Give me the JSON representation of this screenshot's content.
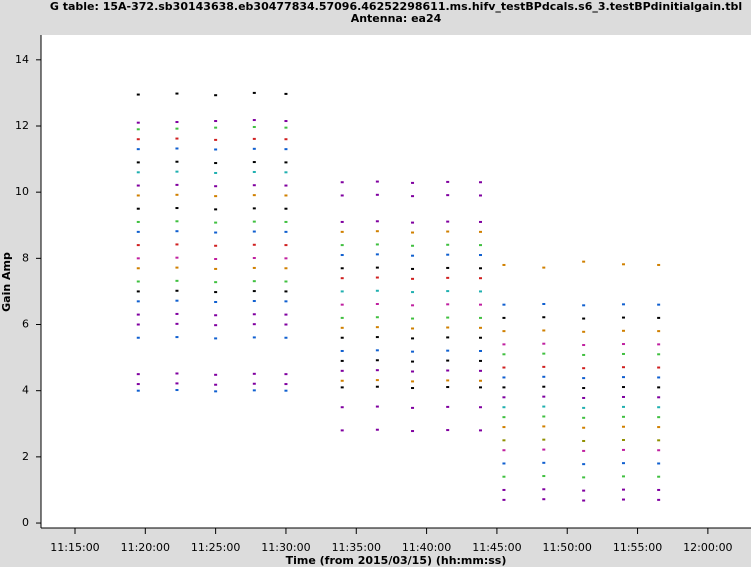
{
  "chart_data": {
    "type": "scatter",
    "title": "G table: 15A-372.sb30143638.eb30477834.57096.46252298611.ms.hifv_testBPdcals.s6_3.testBPdinitialgain.tbl",
    "subtitle": "Antenna: ea24",
    "x_label": "Time (from 2015/03/15) (hh:mm:ss)",
    "y_label": "Gain Amp",
    "xlim": [
      "11:12:35",
      "12:03:04"
    ],
    "xticks": [
      "11:15:00",
      "11:20:00",
      "11:25:00",
      "11:30:00",
      "11:35:00",
      "11:40:00",
      "11:45:00",
      "11:50:00",
      "11:55:00",
      "12:00:00"
    ],
    "ylim": [
      -0.15,
      14.75
    ],
    "yticks": [
      0,
      2,
      4,
      6,
      8,
      10,
      12,
      14
    ],
    "series": [
      {
        "color": "#000000",
        "x": [
          "11:19:30",
          "11:22:15",
          "11:25:00",
          "11:27:45",
          "11:30:00"
        ],
        "values": [
          12.95,
          12.98,
          12.93,
          13.0,
          12.97
        ]
      },
      {
        "color": "#8000a0",
        "x": [
          "11:19:30",
          "11:22:15",
          "11:25:00",
          "11:27:45",
          "11:30:00"
        ],
        "values": [
          12.1,
          12.12,
          12.15,
          12.18,
          12.15
        ]
      },
      {
        "color": "#40c040",
        "x": [
          "11:19:30",
          "11:22:15",
          "11:25:00",
          "11:27:45",
          "11:30:00"
        ],
        "values": [
          11.9,
          11.92,
          11.95,
          11.97,
          11.95
        ]
      },
      {
        "color": "#d02020",
        "x": [
          "11:19:30",
          "11:22:15",
          "11:25:00",
          "11:27:45",
          "11:30:00"
        ],
        "values": [
          11.6,
          11.62,
          11.58,
          11.61,
          11.6
        ]
      },
      {
        "color": "#1060d0",
        "x": [
          "11:19:30",
          "11:22:15",
          "11:25:00",
          "11:27:45",
          "11:30:00"
        ],
        "values": [
          11.3,
          11.32,
          11.29,
          11.31,
          11.3
        ]
      },
      {
        "color": "#000000",
        "x": [
          "11:19:30",
          "11:22:15",
          "11:25:00",
          "11:27:45",
          "11:30:00"
        ],
        "values": [
          10.9,
          10.92,
          10.88,
          10.91,
          10.9
        ]
      },
      {
        "color": "#20b0b0",
        "x": [
          "11:19:30",
          "11:22:15",
          "11:25:00",
          "11:27:45",
          "11:30:00"
        ],
        "values": [
          10.6,
          10.62,
          10.58,
          10.61,
          10.6
        ]
      },
      {
        "color": "#8000a0",
        "x": [
          "11:19:30",
          "11:22:15",
          "11:25:00",
          "11:27:45",
          "11:30:00"
        ],
        "values": [
          10.2,
          10.22,
          10.18,
          10.21,
          10.2
        ]
      },
      {
        "color": "#d08000",
        "x": [
          "11:19:30",
          "11:22:15",
          "11:25:00",
          "11:27:45",
          "11:30:00"
        ],
        "values": [
          9.9,
          9.92,
          9.88,
          9.91,
          9.9
        ]
      },
      {
        "color": "#000000",
        "x": [
          "11:19:30",
          "11:22:15",
          "11:25:00",
          "11:27:45",
          "11:30:00"
        ],
        "values": [
          9.5,
          9.52,
          9.48,
          9.51,
          9.5
        ]
      },
      {
        "color": "#40c040",
        "x": [
          "11:19:30",
          "11:22:15",
          "11:25:00",
          "11:27:45",
          "11:30:00"
        ],
        "values": [
          9.1,
          9.12,
          9.08,
          9.11,
          9.1
        ]
      },
      {
        "color": "#1060d0",
        "x": [
          "11:19:30",
          "11:22:15",
          "11:25:00",
          "11:27:45",
          "11:30:00"
        ],
        "values": [
          8.8,
          8.82,
          8.78,
          8.81,
          8.8
        ]
      },
      {
        "color": "#d02020",
        "x": [
          "11:19:30",
          "11:22:15",
          "11:25:00",
          "11:27:45",
          "11:30:00"
        ],
        "values": [
          8.4,
          8.42,
          8.38,
          8.41,
          8.4
        ]
      },
      {
        "color": "#c020a0",
        "x": [
          "11:19:30",
          "11:22:15",
          "11:25:00",
          "11:27:45",
          "11:30:00"
        ],
        "values": [
          8.0,
          8.02,
          7.98,
          8.01,
          8.0
        ]
      },
      {
        "color": "#d08000",
        "x": [
          "11:19:30",
          "11:22:15",
          "11:25:00",
          "11:27:45",
          "11:30:00"
        ],
        "values": [
          7.7,
          7.72,
          7.68,
          7.71,
          7.7
        ]
      },
      {
        "color": "#40c040",
        "x": [
          "11:19:30",
          "11:22:15",
          "11:25:00",
          "11:27:45",
          "11:30:00"
        ],
        "values": [
          7.3,
          7.32,
          7.28,
          7.31,
          7.3
        ]
      },
      {
        "color": "#000000",
        "x": [
          "11:19:30",
          "11:22:15",
          "11:25:00",
          "11:27:45",
          "11:30:00"
        ],
        "values": [
          7.0,
          7.02,
          6.98,
          7.01,
          7.0
        ]
      },
      {
        "color": "#1060d0",
        "x": [
          "11:19:30",
          "11:22:15",
          "11:25:00",
          "11:27:45",
          "11:30:00"
        ],
        "values": [
          6.7,
          6.72,
          6.68,
          6.71,
          6.7
        ]
      },
      {
        "color": "#8000a0",
        "x": [
          "11:19:30",
          "11:22:15",
          "11:25:00",
          "11:27:45",
          "11:30:00"
        ],
        "values": [
          6.3,
          6.32,
          6.28,
          6.31,
          6.3
        ]
      },
      {
        "color": "#8000a0",
        "x": [
          "11:19:30",
          "11:22:15",
          "11:25:00",
          "11:27:45",
          "11:30:00"
        ],
        "values": [
          6.0,
          6.02,
          5.98,
          6.01,
          6.0
        ]
      },
      {
        "color": "#1060d0",
        "x": [
          "11:19:30",
          "11:22:15",
          "11:25:00",
          "11:27:45",
          "11:30:00"
        ],
        "values": [
          5.6,
          5.62,
          5.58,
          5.61,
          5.6
        ]
      },
      {
        "color": "#8000a0",
        "x": [
          "11:19:30",
          "11:22:15",
          "11:25:00",
          "11:27:45",
          "11:30:00"
        ],
        "values": [
          4.5,
          4.52,
          4.48,
          4.51,
          4.5
        ]
      },
      {
        "color": "#8000a0",
        "x": [
          "11:19:30",
          "11:22:15",
          "11:25:00",
          "11:27:45",
          "11:30:00"
        ],
        "values": [
          4.2,
          4.22,
          4.18,
          4.21,
          4.2
        ]
      },
      {
        "color": "#1060d0",
        "x": [
          "11:19:30",
          "11:22:15",
          "11:25:00",
          "11:27:45",
          "11:30:00"
        ],
        "values": [
          4.0,
          4.02,
          3.98,
          4.01,
          4.0
        ]
      },
      {
        "color": "#8000a0",
        "x": [
          "11:34:00",
          "11:36:30",
          "11:39:00",
          "11:41:30",
          "11:43:50"
        ],
        "values": [
          10.3,
          10.32,
          10.28,
          10.31,
          10.3
        ]
      },
      {
        "color": "#8000a0",
        "x": [
          "11:34:00",
          "11:36:30",
          "11:39:00",
          "11:41:30",
          "11:43:50"
        ],
        "values": [
          9.9,
          9.92,
          9.88,
          9.91,
          9.9
        ]
      },
      {
        "color": "#8000a0",
        "x": [
          "11:34:00",
          "11:36:30",
          "11:39:00",
          "11:41:30",
          "11:43:50"
        ],
        "values": [
          9.1,
          9.12,
          9.08,
          9.11,
          9.1
        ]
      },
      {
        "color": "#d08000",
        "x": [
          "11:34:00",
          "11:36:30",
          "11:39:00",
          "11:41:30",
          "11:43:50"
        ],
        "values": [
          8.8,
          8.82,
          8.78,
          8.81,
          8.8
        ]
      },
      {
        "color": "#40c040",
        "x": [
          "11:34:00",
          "11:36:30",
          "11:39:00",
          "11:41:30",
          "11:43:50"
        ],
        "values": [
          8.4,
          8.42,
          8.38,
          8.41,
          8.4
        ]
      },
      {
        "color": "#1060d0",
        "x": [
          "11:34:00",
          "11:36:30",
          "11:39:00",
          "11:41:30",
          "11:43:50"
        ],
        "values": [
          8.1,
          8.12,
          8.08,
          8.11,
          8.1
        ]
      },
      {
        "color": "#000000",
        "x": [
          "11:34:00",
          "11:36:30",
          "11:39:00",
          "11:41:30",
          "11:43:50"
        ],
        "values": [
          7.7,
          7.72,
          7.68,
          7.71,
          7.7
        ]
      },
      {
        "color": "#d02020",
        "x": [
          "11:34:00",
          "11:36:30",
          "11:39:00",
          "11:41:30",
          "11:43:50"
        ],
        "values": [
          7.4,
          7.42,
          7.38,
          7.41,
          7.4
        ]
      },
      {
        "color": "#20b0b0",
        "x": [
          "11:34:00",
          "11:36:30",
          "11:39:00",
          "11:41:30",
          "11:43:50"
        ],
        "values": [
          7.0,
          7.02,
          6.98,
          7.01,
          7.0
        ]
      },
      {
        "color": "#c020a0",
        "x": [
          "11:34:00",
          "11:36:30",
          "11:39:00",
          "11:41:30",
          "11:43:50"
        ],
        "values": [
          6.6,
          6.62,
          6.58,
          6.61,
          6.6
        ]
      },
      {
        "color": "#40c040",
        "x": [
          "11:34:00",
          "11:36:30",
          "11:39:00",
          "11:41:30",
          "11:43:50"
        ],
        "values": [
          6.2,
          6.22,
          6.18,
          6.21,
          6.2
        ]
      },
      {
        "color": "#d08000",
        "x": [
          "11:34:00",
          "11:36:30",
          "11:39:00",
          "11:41:30",
          "11:43:50"
        ],
        "values": [
          5.9,
          5.92,
          5.88,
          5.91,
          5.9
        ]
      },
      {
        "color": "#000000",
        "x": [
          "11:34:00",
          "11:36:30",
          "11:39:00",
          "11:41:30",
          "11:43:50"
        ],
        "values": [
          5.6,
          5.62,
          5.58,
          5.61,
          5.6
        ]
      },
      {
        "color": "#1060d0",
        "x": [
          "11:34:00",
          "11:36:30",
          "11:39:00",
          "11:41:30",
          "11:43:50"
        ],
        "values": [
          5.2,
          5.22,
          5.18,
          5.21,
          5.2
        ]
      },
      {
        "color": "#000000",
        "x": [
          "11:34:00",
          "11:36:30",
          "11:39:00",
          "11:41:30",
          "11:43:50"
        ],
        "values": [
          4.9,
          4.92,
          4.88,
          4.91,
          4.9
        ]
      },
      {
        "color": "#8000a0",
        "x": [
          "11:34:00",
          "11:36:30",
          "11:39:00",
          "11:41:30",
          "11:43:50"
        ],
        "values": [
          4.6,
          4.62,
          4.58,
          4.61,
          4.6
        ]
      },
      {
        "color": "#d08000",
        "x": [
          "11:34:00",
          "11:36:30",
          "11:39:00",
          "11:41:30",
          "11:43:50"
        ],
        "values": [
          4.3,
          4.32,
          4.28,
          4.31,
          4.3
        ]
      },
      {
        "color": "#000000",
        "x": [
          "11:34:00",
          "11:36:30",
          "11:39:00",
          "11:41:30",
          "11:43:50"
        ],
        "values": [
          4.1,
          4.12,
          4.08,
          4.11,
          4.1
        ]
      },
      {
        "color": "#8000a0",
        "x": [
          "11:34:00",
          "11:36:30",
          "11:39:00",
          "11:41:30",
          "11:43:50"
        ],
        "values": [
          3.5,
          3.52,
          3.48,
          3.51,
          3.5
        ]
      },
      {
        "color": "#8000a0",
        "x": [
          "11:34:00",
          "11:36:30",
          "11:39:00",
          "11:41:30",
          "11:43:50"
        ],
        "values": [
          2.8,
          2.82,
          2.78,
          2.81,
          2.8
        ]
      },
      {
        "color": "#d08000",
        "x": [
          "11:45:30",
          "11:48:20",
          "11:51:10",
          "11:54:00",
          "11:56:30"
        ],
        "values": [
          7.8,
          7.72,
          7.9,
          7.82,
          7.8
        ]
      },
      {
        "color": "#1060d0",
        "x": [
          "11:45:30",
          "11:48:20",
          "11:51:10",
          "11:54:00",
          "11:56:30"
        ],
        "values": [
          6.6,
          6.62,
          6.58,
          6.61,
          6.6
        ]
      },
      {
        "color": "#000000",
        "x": [
          "11:45:30",
          "11:48:20",
          "11:51:10",
          "11:54:00",
          "11:56:30"
        ],
        "values": [
          6.2,
          6.22,
          6.18,
          6.21,
          6.2
        ]
      },
      {
        "color": "#d08000",
        "x": [
          "11:45:30",
          "11:48:20",
          "11:51:10",
          "11:54:00",
          "11:56:30"
        ],
        "values": [
          5.8,
          5.82,
          5.78,
          5.81,
          5.8
        ]
      },
      {
        "color": "#c020a0",
        "x": [
          "11:45:30",
          "11:48:20",
          "11:51:10",
          "11:54:00",
          "11:56:30"
        ],
        "values": [
          5.4,
          5.42,
          5.38,
          5.41,
          5.4
        ]
      },
      {
        "color": "#40c040",
        "x": [
          "11:45:30",
          "11:48:20",
          "11:51:10",
          "11:54:00",
          "11:56:30"
        ],
        "values": [
          5.1,
          5.12,
          5.08,
          5.11,
          5.1
        ]
      },
      {
        "color": "#d02020",
        "x": [
          "11:45:30",
          "11:48:20",
          "11:51:10",
          "11:54:00",
          "11:56:30"
        ],
        "values": [
          4.7,
          4.72,
          4.68,
          4.71,
          4.7
        ]
      },
      {
        "color": "#1060d0",
        "x": [
          "11:45:30",
          "11:48:20",
          "11:51:10",
          "11:54:00",
          "11:56:30"
        ],
        "values": [
          4.4,
          4.42,
          4.38,
          4.41,
          4.4
        ]
      },
      {
        "color": "#000000",
        "x": [
          "11:45:30",
          "11:48:20",
          "11:51:10",
          "11:54:00",
          "11:56:30"
        ],
        "values": [
          4.1,
          4.12,
          4.08,
          4.11,
          4.1
        ]
      },
      {
        "color": "#8000a0",
        "x": [
          "11:45:30",
          "11:48:20",
          "11:51:10",
          "11:54:00",
          "11:56:30"
        ],
        "values": [
          3.8,
          3.82,
          3.78,
          3.81,
          3.8
        ]
      },
      {
        "color": "#20b0b0",
        "x": [
          "11:45:30",
          "11:48:20",
          "11:51:10",
          "11:54:00",
          "11:56:30"
        ],
        "values": [
          3.5,
          3.52,
          3.48,
          3.51,
          3.5
        ]
      },
      {
        "color": "#40c040",
        "x": [
          "11:45:30",
          "11:48:20",
          "11:51:10",
          "11:54:00",
          "11:56:30"
        ],
        "values": [
          3.2,
          3.22,
          3.18,
          3.21,
          3.2
        ]
      },
      {
        "color": "#d08000",
        "x": [
          "11:45:30",
          "11:48:20",
          "11:51:10",
          "11:54:00",
          "11:56:30"
        ],
        "values": [
          2.9,
          2.92,
          2.88,
          2.91,
          2.9
        ]
      },
      {
        "color": "#909000",
        "x": [
          "11:45:30",
          "11:48:20",
          "11:51:10",
          "11:54:00",
          "11:56:30"
        ],
        "values": [
          2.5,
          2.52,
          2.48,
          2.51,
          2.5
        ]
      },
      {
        "color": "#c020a0",
        "x": [
          "11:45:30",
          "11:48:20",
          "11:51:10",
          "11:54:00",
          "11:56:30"
        ],
        "values": [
          2.2,
          2.22,
          2.18,
          2.21,
          2.2
        ]
      },
      {
        "color": "#1060d0",
        "x": [
          "11:45:30",
          "11:48:20",
          "11:51:10",
          "11:54:00",
          "11:56:30"
        ],
        "values": [
          1.8,
          1.82,
          1.78,
          1.81,
          1.8
        ]
      },
      {
        "color": "#40c040",
        "x": [
          "11:45:30",
          "11:48:20",
          "11:51:10",
          "11:54:00",
          "11:56:30"
        ],
        "values": [
          1.4,
          1.42,
          1.38,
          1.41,
          1.4
        ]
      },
      {
        "color": "#8000a0",
        "x": [
          "11:45:30",
          "11:48:20",
          "11:51:10",
          "11:54:00",
          "11:56:30"
        ],
        "values": [
          1.0,
          1.02,
          0.98,
          1.01,
          1.0
        ]
      },
      {
        "color": "#8000a0",
        "x": [
          "11:45:30",
          "11:48:20",
          "11:51:10",
          "11:54:00",
          "11:56:30"
        ],
        "values": [
          0.7,
          0.72,
          0.68,
          0.71,
          0.7
        ]
      }
    ]
  }
}
